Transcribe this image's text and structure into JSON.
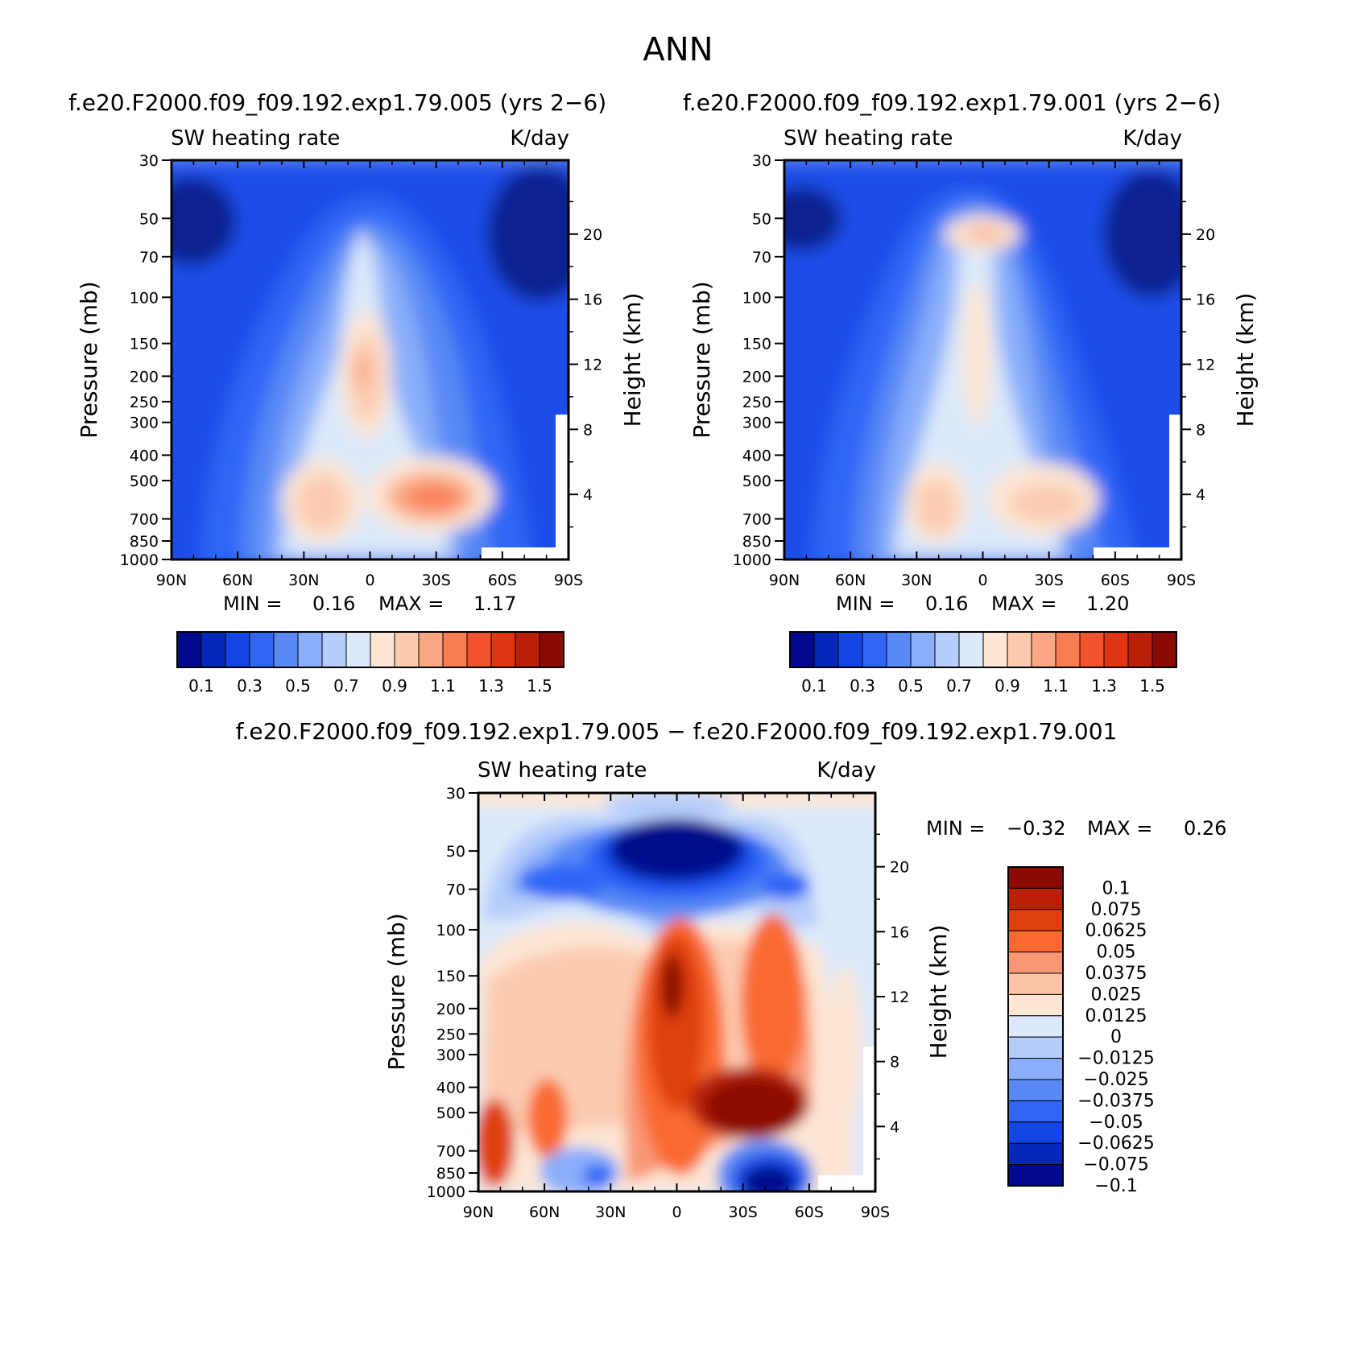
{
  "figure": {
    "title": "ANN"
  },
  "panels": [
    {
      "id": "top-left",
      "case_title": "f.e20.F2000.f09_f09.192.exp1.79.005 (yrs 2−6)",
      "variable": "SW heating rate",
      "units": "K/day",
      "stats": {
        "min_label": "MIN =",
        "min": "0.16",
        "max_label": "MAX =",
        "max": "1.17"
      }
    },
    {
      "id": "top-right",
      "case_title": "f.e20.F2000.f09_f09.192.exp1.79.001 (yrs 2−6)",
      "variable": "SW heating rate",
      "units": "K/day",
      "stats": {
        "min_label": "MIN =",
        "min": "0.16",
        "max_label": "MAX =",
        "max": "1.20"
      }
    },
    {
      "id": "bottom-diff",
      "case_title": "f.e20.F2000.f09_f09.192.exp1.79.005 − f.e20.F2000.f09_f09.192.exp1.79.001",
      "variable": "SW heating rate",
      "units": "K/day",
      "stats": {
        "min_label": "MIN =",
        "min": "−0.32",
        "max_label": "MAX =",
        "max": "0.26"
      }
    }
  ],
  "chart_data": [
    {
      "type": "contour",
      "panel": "top-left",
      "title": "f.e20.F2000.f09_f09.192.exp1.79.005 (yrs 2−6)",
      "xlabel": "",
      "ylabel": "Pressure (mb)",
      "y2label": "Height (km)",
      "x_ticks": [
        "90N",
        "60N",
        "30N",
        "0",
        "30S",
        "60S",
        "90S"
      ],
      "y_ticks": [
        "30",
        "50",
        "70",
        "100",
        "150",
        "200",
        "250",
        "300",
        "400",
        "500",
        "700",
        "850",
        "1000"
      ],
      "y2_ticks": [
        "20",
        "16",
        "12",
        "8",
        "4"
      ],
      "ylim": [
        30,
        1000
      ],
      "colorbar_levels": [
        "0.1",
        "0.3",
        "0.5",
        "0.7",
        "0.9",
        "1.1",
        "1.3",
        "1.5"
      ],
      "min": 0.16,
      "max": 1.17
    },
    {
      "type": "contour",
      "panel": "top-right",
      "title": "f.e20.F2000.f09_f09.192.exp1.79.001 (yrs 2−6)",
      "xlabel": "",
      "ylabel": "Pressure (mb)",
      "y2label": "Height (km)",
      "x_ticks": [
        "90N",
        "60N",
        "30N",
        "0",
        "30S",
        "60S",
        "90S"
      ],
      "y_ticks": [
        "30",
        "50",
        "70",
        "100",
        "150",
        "200",
        "250",
        "300",
        "400",
        "500",
        "700",
        "850",
        "1000"
      ],
      "y2_ticks": [
        "20",
        "16",
        "12",
        "8",
        "4"
      ],
      "ylim": [
        30,
        1000
      ],
      "colorbar_levels": [
        "0.1",
        "0.3",
        "0.5",
        "0.7",
        "0.9",
        "1.1",
        "1.3",
        "1.5"
      ],
      "min": 0.16,
      "max": 1.2
    },
    {
      "type": "contour",
      "panel": "bottom-diff",
      "title": "f.e20.F2000.f09_f09.192.exp1.79.005 − f.e20.F2000.f09_f09.192.exp1.79.001",
      "xlabel": "",
      "ylabel": "Pressure (mb)",
      "y2label": "Height (km)",
      "x_ticks": [
        "90N",
        "60N",
        "30N",
        "0",
        "30S",
        "60S",
        "90S"
      ],
      "y_ticks": [
        "30",
        "50",
        "70",
        "100",
        "150",
        "200",
        "250",
        "300",
        "400",
        "500",
        "700",
        "850",
        "1000"
      ],
      "y2_ticks": [
        "20",
        "16",
        "12",
        "8",
        "4"
      ],
      "ylim": [
        30,
        1000
      ],
      "colorbar_levels": [
        "0.1",
        "0.075",
        "0.0625",
        "0.05",
        "0.0375",
        "0.025",
        "0.0125",
        "0",
        "−0.0125",
        "−0.025",
        "−0.0375",
        "−0.05",
        "−0.0625",
        "−0.075",
        "−0.1"
      ],
      "min": -0.32,
      "max": 0.26
    }
  ],
  "colors": {
    "abs_colorbar": [
      "#03098c",
      "#0628b8",
      "#1446e6",
      "#2f66f5",
      "#5989f5",
      "#8aaefa",
      "#b6cdfa",
      "#dce9fa",
      "#fde6d4",
      "#fbcbb0",
      "#f9a883",
      "#f97d53",
      "#f4522c",
      "#df3512",
      "#b82108",
      "#8c0a04"
    ],
    "diff_colorbar": [
      "#8c0a04",
      "#b82108",
      "#e0400f",
      "#f96a33",
      "#f99775",
      "#fbc4a6",
      "#fde6d4",
      "#dce9fa",
      "#b6cdfa",
      "#8aaefa",
      "#5989f5",
      "#2f66f5",
      "#1446e6",
      "#0628b8",
      "#03098c"
    ]
  }
}
